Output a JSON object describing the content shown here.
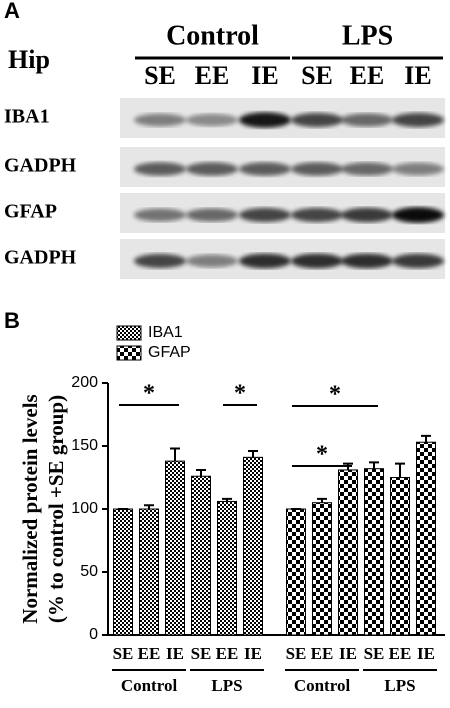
{
  "panel_a": {
    "label": "A",
    "tissue": "Hip",
    "groups": [
      "Control",
      "LPS"
    ],
    "lanes": [
      "SE",
      "EE",
      "IE",
      "SE",
      "EE",
      "IE"
    ],
    "rows": [
      "IBA1",
      "GADPH",
      "GFAP",
      "GADPH"
    ]
  },
  "chart_data": {
    "type": "bar",
    "panel_label": "B",
    "ylabel": [
      "Normalized protein levels",
      "(% to control +SE group)"
    ],
    "categories": [
      "SE",
      "EE",
      "IE",
      "SE",
      "EE",
      "IE"
    ],
    "groups": [
      "Control",
      "LPS"
    ],
    "series": [
      {
        "name": "IBA1",
        "color": "#000000",
        "values": [
          100,
          100,
          138,
          126,
          106,
          141
        ],
        "errors": [
          0,
          3,
          10,
          5,
          2,
          5
        ]
      },
      {
        "name": "GFAP",
        "color": "#000000",
        "values": [
          100,
          105,
          131,
          132,
          125,
          153
        ],
        "errors": [
          0,
          3,
          5,
          5,
          11,
          5
        ]
      }
    ],
    "annotations": [
      "*",
      "*",
      "*",
      "*"
    ],
    "ylim": [
      0,
      200
    ],
    "yticks": [
      0,
      50,
      100,
      150,
      200
    ]
  }
}
